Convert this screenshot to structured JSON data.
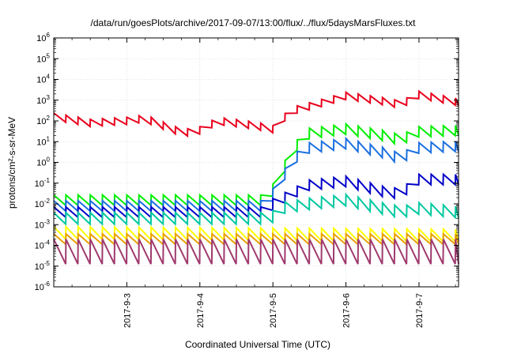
{
  "chart_data": {
    "type": "line",
    "title": "/data/run/goesPlots/archive/2017-09-07/13:00/flux/../flux/5daysMarsFluxes.txt",
    "xlabel": "Coordinated Universal Time (UTC)",
    "ylabel": "protons/cm²-s-sr-MeV",
    "yscale": "log",
    "ylim": [
      1e-06,
      1000000.0
    ],
    "xlim": [
      "2017-09-02 00:00",
      "2017-09-07 13:00"
    ],
    "x_tick_labels": [
      "2017-9-3",
      "2017-9-4",
      "2017-9-5",
      "2017-9-6",
      "2017-9-7"
    ],
    "y_tick_labels": [
      {
        "base": "10",
        "exp": "-6"
      },
      {
        "base": "10",
        "exp": "-5"
      },
      {
        "base": "10",
        "exp": "-4"
      },
      {
        "base": "10",
        "exp": "-3"
      },
      {
        "base": "10",
        "exp": "-2"
      },
      {
        "base": "10",
        "exp": "-1"
      },
      {
        "base": "10",
        "exp": "0"
      },
      {
        "base": "10",
        "exp": "1"
      },
      {
        "base": "10",
        "exp": "2"
      },
      {
        "base": "10",
        "exp": "3"
      },
      {
        "base": "10",
        "exp": "4"
      },
      {
        "base": "10",
        "exp": "5"
      },
      {
        "base": "10",
        "exp": "6"
      }
    ],
    "grid": true,
    "legend": "none",
    "series": [
      {
        "color": "#e8001c",
        "period_hours": 4,
        "sawtooth_dex": 0.35,
        "baseline": [
          [
            "2017-09-02 00:00",
            160
          ],
          [
            "2017-09-02 12:00",
            80
          ],
          [
            "2017-09-03 00:00",
            100
          ],
          [
            "2017-09-03 06:00",
            130
          ],
          [
            "2017-09-03 16:00",
            35
          ],
          [
            "2017-09-03 22:00",
            25
          ],
          [
            "2017-09-04 06:00",
            100
          ],
          [
            "2017-09-04 18:00",
            60
          ],
          [
            "2017-09-05 00:00",
            40
          ],
          [
            "2017-09-05 06:00",
            300
          ],
          [
            "2017-09-05 14:00",
            600
          ],
          [
            "2017-09-06 00:00",
            1600
          ],
          [
            "2017-09-06 12:00",
            900
          ],
          [
            "2017-09-06 18:00",
            600
          ],
          [
            "2017-09-07 00:00",
            1800
          ],
          [
            "2017-09-07 13:00",
            800
          ]
        ]
      },
      {
        "color": "#00ee00",
        "period_hours": 4,
        "sawtooth_dex": 0.5,
        "baseline": [
          [
            "2017-09-02 00:00",
            0.015
          ],
          [
            "2017-09-04 23:30",
            0.015
          ],
          [
            "2017-09-05 00:00",
            0.05
          ],
          [
            "2017-09-05 07:00",
            5
          ],
          [
            "2017-09-05 12:00",
            25
          ],
          [
            "2017-09-06 00:00",
            40
          ],
          [
            "2017-09-06 12:00",
            20
          ],
          [
            "2017-09-06 18:00",
            12
          ],
          [
            "2017-09-07 00:00",
            30
          ],
          [
            "2017-09-07 13:00",
            35
          ]
        ]
      },
      {
        "color": "#1a6fe0",
        "period_hours": 4,
        "sawtooth_dex": 0.5,
        "baseline": [
          [
            "2017-09-02 00:00",
            0.008
          ],
          [
            "2017-09-04 23:30",
            0.008
          ],
          [
            "2017-09-05 00:00",
            0.03
          ],
          [
            "2017-09-05 07:00",
            1.5
          ],
          [
            "2017-09-05 12:00",
            5
          ],
          [
            "2017-09-06 00:00",
            8
          ],
          [
            "2017-09-06 12:00",
            3
          ],
          [
            "2017-09-06 18:00",
            1.5
          ],
          [
            "2017-09-07 00:00",
            5
          ],
          [
            "2017-09-07 13:00",
            6
          ]
        ]
      },
      {
        "color": "#0000c8",
        "period_hours": 4,
        "sawtooth_dex": 0.5,
        "baseline": [
          [
            "2017-09-02 00:00",
            0.004
          ],
          [
            "2017-09-04 23:30",
            0.004
          ],
          [
            "2017-09-05 00:00",
            0.01
          ],
          [
            "2017-09-05 12:00",
            0.08
          ],
          [
            "2017-09-06 00:00",
            0.12
          ],
          [
            "2017-09-06 12:00",
            0.04
          ],
          [
            "2017-09-06 18:00",
            0.03
          ],
          [
            "2017-09-07 00:00",
            0.15
          ],
          [
            "2017-09-07 13:00",
            0.15
          ]
        ]
      },
      {
        "color": "#00c8a0",
        "period_hours": 4,
        "sawtooth_dex": 0.55,
        "baseline": [
          [
            "2017-09-02 00:00",
            0.002
          ],
          [
            "2017-09-04 23:30",
            0.002
          ],
          [
            "2017-09-05 02:00",
            0.006
          ],
          [
            "2017-09-05 12:00",
            0.01
          ],
          [
            "2017-09-06 00:00",
            0.015
          ],
          [
            "2017-09-06 12:00",
            0.006
          ],
          [
            "2017-09-06 18:00",
            0.004
          ],
          [
            "2017-09-07 00:00",
            0.006
          ],
          [
            "2017-09-07 13:00",
            0.004
          ]
        ]
      },
      {
        "color": "#ffff00",
        "period_hours": 4,
        "sawtooth_dex": 0.6,
        "baseline": [
          [
            "2017-09-02 00:00",
            0.0004
          ],
          [
            "2017-09-07 13:00",
            0.0003
          ]
        ]
      },
      {
        "color": "#e8a000",
        "period_hours": 4,
        "sawtooth_dex": 0.5,
        "baseline": [
          [
            "2017-09-02 00:00",
            0.0002
          ],
          [
            "2017-09-07 13:00",
            0.0002
          ]
        ]
      },
      {
        "color": "#a03a6e",
        "period_hours": 4,
        "sawtooth_dex": 1.2,
        "baseline": [
          [
            "2017-09-02 00:00",
            5e-05
          ],
          [
            "2017-09-07 13:00",
            5e-05
          ]
        ]
      }
    ]
  }
}
